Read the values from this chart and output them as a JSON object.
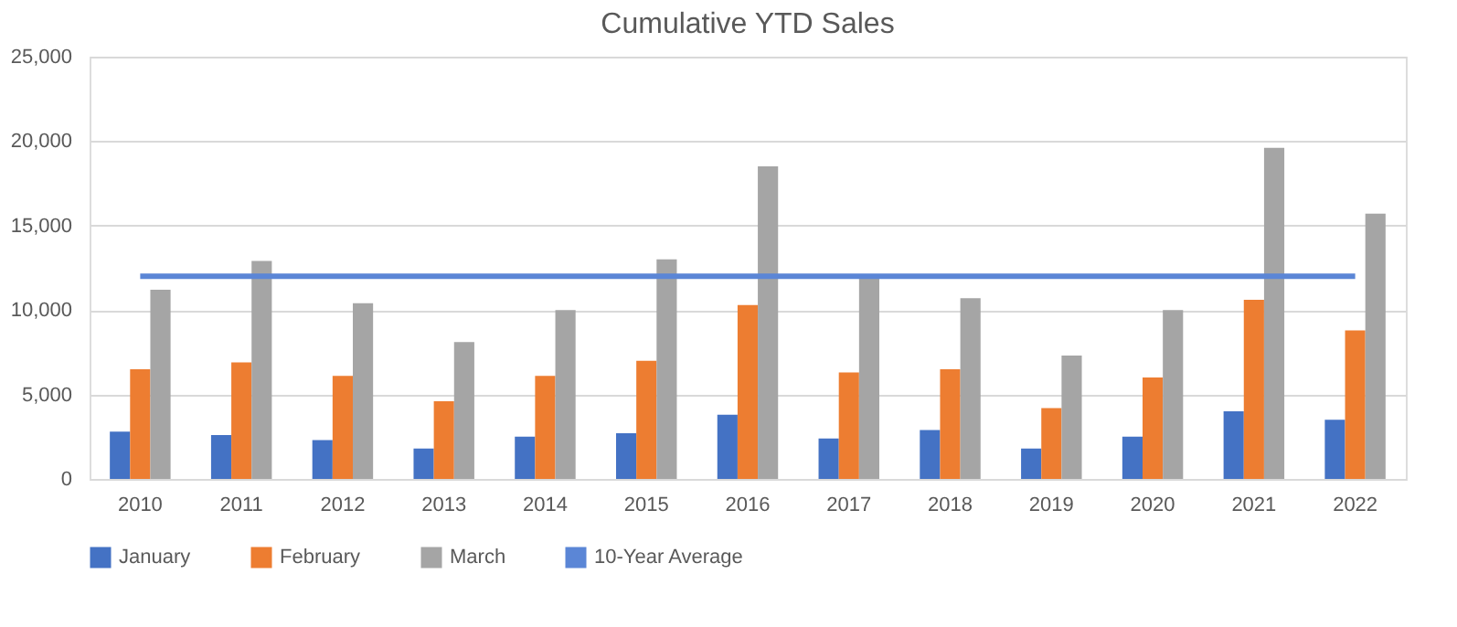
{
  "chart_data": {
    "type": "bar",
    "title": "Cumulative YTD Sales",
    "categories": [
      "2010",
      "2011",
      "2012",
      "2013",
      "2014",
      "2015",
      "2016",
      "2017",
      "2018",
      "2019",
      "2020",
      "2021",
      "2022"
    ],
    "series": [
      {
        "name": "January",
        "color": "#4472c4",
        "values": [
          2800,
          2600,
          2300,
          1800,
          2500,
          2700,
          3800,
          2400,
          2900,
          1800,
          2500,
          4000,
          3500
        ]
      },
      {
        "name": "February",
        "color": "#ed7d31",
        "values": [
          6500,
          6900,
          6100,
          4600,
          6100,
          7000,
          10300,
          6300,
          6500,
          4200,
          6000,
          10600,
          8800
        ]
      },
      {
        "name": "March",
        "color": "#a5a5a5",
        "values": [
          11200,
          12900,
          10400,
          8100,
          10000,
          13000,
          18500,
          11900,
          10700,
          7300,
          10000,
          19600,
          15700
        ]
      },
      {
        "name": "10-Year Average",
        "type": "line",
        "color": "#5b86d6",
        "values": [
          12000,
          12000,
          12000,
          12000,
          12000,
          12000,
          12000,
          12000,
          12000,
          12000,
          12000,
          12000,
          12000
        ]
      }
    ],
    "ylim": [
      0,
      25000
    ],
    "yticks": [
      {
        "value": 0,
        "label": "0"
      },
      {
        "value": 5000,
        "label": "5,000"
      },
      {
        "value": 10000,
        "label": "10,000"
      },
      {
        "value": 15000,
        "label": "15,000"
      },
      {
        "value": 20000,
        "label": "20,000"
      },
      {
        "value": 25000,
        "label": "25,000"
      }
    ],
    "grid": "y",
    "legend": "bottom",
    "marker": "none",
    "line_style": "solid"
  }
}
